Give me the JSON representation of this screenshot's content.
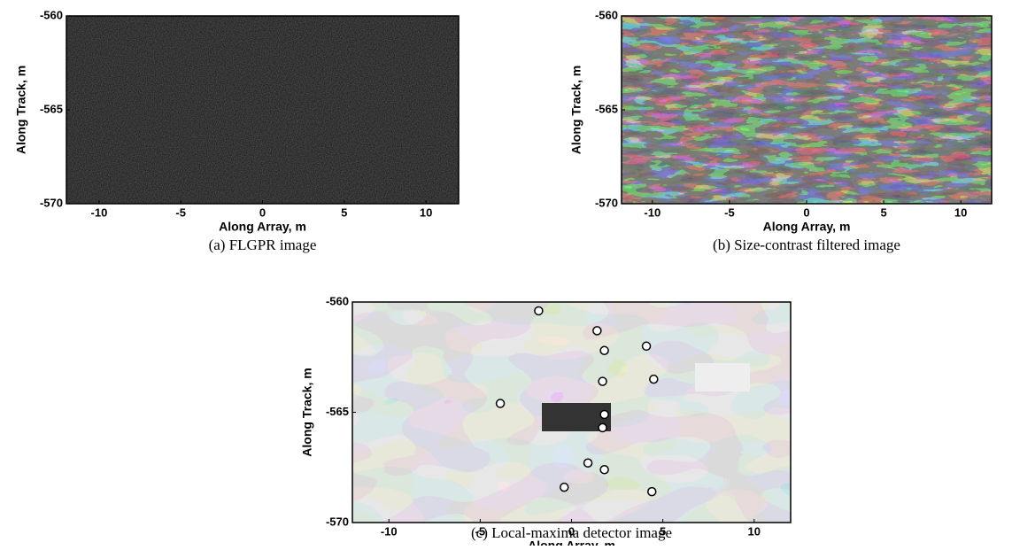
{
  "chart_data": [
    {
      "type": "image",
      "xlabel": "Along Array, m",
      "ylabel": "Along Track, m",
      "caption": "(a)   FLGPR image",
      "xlim": [
        -12,
        12
      ],
      "xticks": [
        -10,
        -5,
        0,
        5,
        10
      ],
      "ylim": [
        -570,
        -560
      ],
      "yticks": [
        -560,
        -565,
        -570
      ]
    },
    {
      "type": "image",
      "xlabel": "Along Array, m",
      "ylabel": "Along Track, m",
      "caption": "(b)   Size-contrast filtered image",
      "xlim": [
        -12,
        12
      ],
      "xticks": [
        -10,
        -5,
        0,
        5,
        10
      ],
      "ylim": [
        -570,
        -560
      ],
      "yticks": [
        -560,
        -565,
        -570
      ]
    },
    {
      "type": "scatter",
      "xlabel": "Along Array, m",
      "ylabel": "Along Track, m",
      "caption": "(c)   Local-maxima detector image",
      "xlim": [
        -12,
        12
      ],
      "xticks": [
        -10,
        -5,
        0,
        5,
        10
      ],
      "ylim": [
        -570,
        -560
      ],
      "yticks": [
        -560,
        -565,
        -570
      ],
      "x": [
        -1.8,
        1.4,
        1.8,
        4.1,
        1.7,
        4.5,
        -3.9,
        1.8,
        1.7,
        0.9,
        1.8,
        -0.4,
        4.4
      ],
      "y": [
        -560.4,
        -561.3,
        -562.2,
        -562.0,
        -563.6,
        -563.5,
        -564.6,
        -565.1,
        -565.7,
        -567.3,
        -567.6,
        -568.4,
        -568.6
      ]
    }
  ]
}
